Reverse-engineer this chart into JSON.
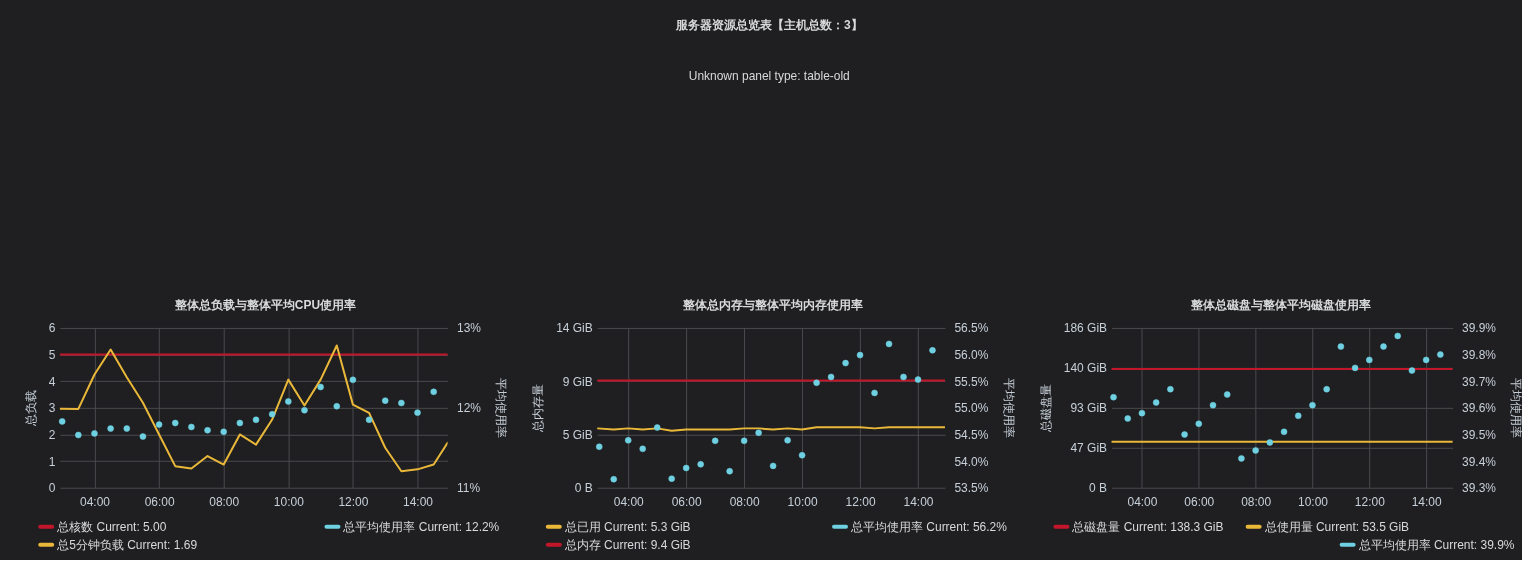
{
  "chart_data": [
    {
      "type": "other",
      "title": "服务器资源总览表【主机总数：3】",
      "annotations": [
        "Unknown panel type: table-old"
      ]
    },
    {
      "type": "line",
      "title": "整体总负载与整体平均CPU使用率",
      "ylabel": "总负载",
      "y2label": "平均使用率",
      "grid": true,
      "legend": "bottom",
      "xlim": [
        2.93,
        14.93
      ],
      "xticks": [
        {
          "value": 4,
          "label": "04:00"
        },
        {
          "value": 6,
          "label": "06:00"
        },
        {
          "value": 8,
          "label": "08:00"
        },
        {
          "value": 10,
          "label": "10:00"
        },
        {
          "value": 12,
          "label": "12:00"
        },
        {
          "value": 14,
          "label": "14:00"
        }
      ],
      "ylim": [
        0,
        6
      ],
      "yticks": [
        0,
        1,
        2,
        3,
        4,
        5,
        6
      ],
      "y2lim": [
        11,
        13
      ],
      "y2ticks": [
        {
          "value": 11,
          "label": "11%"
        },
        {
          "value": 12,
          "label": "12%"
        },
        {
          "value": 13,
          "label": "13%"
        }
      ],
      "series": [
        {
          "name": "总核数 Current: 5.00",
          "type": "line",
          "color": "#c4162a",
          "x": [
            2.93,
            14.93
          ],
          "values": [
            5.0,
            5.0
          ]
        },
        {
          "name": "总平均使用率 Current: 12.2%",
          "type": "scatter",
          "axis": "y2",
          "marker": "circle",
          "color": "#6ed0e0",
          "x": [
            3,
            3.5,
            4,
            4.5,
            5,
            5.5,
            6,
            6.5,
            7,
            7.5,
            8,
            8.5,
            9,
            9.5,
            10,
            10.5,
            11,
            11.5,
            12,
            12.5,
            13,
            13.5,
            14,
            14.5
          ],
          "values": [
            11.83,
            11.66,
            11.68,
            11.74,
            11.74,
            11.64,
            11.79,
            11.81,
            11.76,
            11.72,
            11.7,
            11.81,
            11.85,
            11.92,
            12.08,
            11.97,
            12.26,
            12.02,
            12.35,
            11.85,
            12.09,
            12.06,
            11.94,
            12.2
          ]
        },
        {
          "name": "总5分钟负载 Current: 1.69",
          "type": "line",
          "color": "#eab839",
          "x": [
            2.93,
            3.5,
            4,
            4.5,
            5,
            5.5,
            6,
            6.5,
            7,
            7.5,
            8,
            8.5,
            9,
            9.5,
            10,
            10.5,
            11,
            11.5,
            12,
            12.5,
            13,
            13.5,
            14,
            14.5,
            14.93
          ],
          "values": [
            2.97,
            2.96,
            4.25,
            5.19,
            4.15,
            3.19,
            2.0,
            0.81,
            0.72,
            1.19,
            0.87,
            2.0,
            1.62,
            2.56,
            4.06,
            3.09,
            4.06,
            5.34,
            3.12,
            2.81,
            1.5,
            0.62,
            0.69,
            0.87,
            1.69
          ]
        }
      ]
    },
    {
      "type": "line",
      "title": "整体总内存与整体平均内存使用率",
      "ylabel": "总内存量",
      "y2label": "平均使用率",
      "grid": true,
      "legend": "bottom",
      "xlim": [
        2.93,
        14.93
      ],
      "xticks": [
        {
          "value": 4,
          "label": "04:00"
        },
        {
          "value": 6,
          "label": "06:00"
        },
        {
          "value": 8,
          "label": "08:00"
        },
        {
          "value": 10,
          "label": "10:00"
        },
        {
          "value": 12,
          "label": "12:00"
        },
        {
          "value": 14,
          "label": "14:00"
        }
      ],
      "ylim": [
        0,
        14
      ],
      "yticks": [
        {
          "value": 0,
          "label": "0 B"
        },
        {
          "value": 4.667,
          "label": "5 GiB"
        },
        {
          "value": 9.333,
          "label": "9 GiB"
        },
        {
          "value": 14,
          "label": "14 GiB"
        }
      ],
      "y2lim": [
        53.5,
        56.5
      ],
      "y2ticks": [
        {
          "value": 53.5,
          "label": "53.5%"
        },
        {
          "value": 54,
          "label": "54.0%"
        },
        {
          "value": 54.5,
          "label": "54.5%"
        },
        {
          "value": 55,
          "label": "55.0%"
        },
        {
          "value": 55.5,
          "label": "55.5%"
        },
        {
          "value": 56,
          "label": "56.0%"
        },
        {
          "value": 56.5,
          "label": "56.5%"
        }
      ],
      "series": [
        {
          "name": "总已用 Current: 5.3 GiB",
          "type": "line",
          "color": "#eab839",
          "x": [
            2.93,
            3.5,
            4,
            4.5,
            5,
            5.5,
            6,
            6.5,
            7,
            7.5,
            8,
            8.5,
            9,
            9.5,
            10,
            10.5,
            11,
            11.5,
            12,
            12.5,
            13,
            13.5,
            14,
            14.5,
            14.93
          ],
          "values": [
            5.2,
            5.1,
            5.2,
            5.1,
            5.2,
            5.0,
            5.1,
            5.1,
            5.1,
            5.1,
            5.2,
            5.2,
            5.1,
            5.2,
            5.1,
            5.3,
            5.3,
            5.3,
            5.3,
            5.2,
            5.3,
            5.3,
            5.3,
            5.3,
            5.3
          ]
        },
        {
          "name": "总平均使用率 Current: 56.2%",
          "type": "scatter",
          "axis": "y2",
          "marker": "circle",
          "color": "#6ed0e0",
          "x": [
            3,
            3.5,
            4,
            4.5,
            5,
            5.5,
            6,
            6.5,
            7,
            7.5,
            8,
            8.5,
            9,
            9.5,
            10,
            10.5,
            11,
            11.5,
            12,
            12.5,
            13,
            13.5,
            14,
            14.5
          ],
          "values": [
            54.27,
            53.66,
            54.39,
            54.23,
            54.63,
            53.67,
            53.87,
            53.94,
            54.38,
            53.81,
            54.38,
            54.53,
            53.91,
            54.39,
            54.11,
            55.47,
            55.58,
            55.84,
            55.99,
            55.28,
            56.2,
            55.58,
            55.53,
            56.08
          ]
        },
        {
          "name": "总内存 Current: 9.4 GiB",
          "type": "line",
          "color": "#c4162a",
          "x": [
            2.93,
            14.93
          ],
          "values": [
            9.4,
            9.4
          ]
        }
      ]
    },
    {
      "type": "line",
      "title": "整体总磁盘与整体平均磁盘使用率",
      "ylabel": "总磁盘量",
      "y2label": "平均使用率",
      "grid": true,
      "legend": "bottom",
      "xlim": [
        2.93,
        14.93
      ],
      "xticks": [
        {
          "value": 4,
          "label": "04:00"
        },
        {
          "value": 6,
          "label": "06:00"
        },
        {
          "value": 8,
          "label": "08:00"
        },
        {
          "value": 10,
          "label": "10:00"
        },
        {
          "value": 12,
          "label": "12:00"
        },
        {
          "value": 14,
          "label": "14:00"
        }
      ],
      "ylim": [
        0,
        186
      ],
      "yticks": [
        {
          "value": 0,
          "label": "0 B"
        },
        {
          "value": 46.5,
          "label": "47 GiB"
        },
        {
          "value": 93,
          "label": "93 GiB"
        },
        {
          "value": 139.5,
          "label": "140 GiB"
        },
        {
          "value": 186,
          "label": "186 GiB"
        }
      ],
      "y2lim": [
        39.3,
        39.9
      ],
      "y2ticks": [
        {
          "value": 39.3,
          "label": "39.3%"
        },
        {
          "value": 39.4,
          "label": "39.4%"
        },
        {
          "value": 39.5,
          "label": "39.5%"
        },
        {
          "value": 39.6,
          "label": "39.6%"
        },
        {
          "value": 39.7,
          "label": "39.7%"
        },
        {
          "value": 39.8,
          "label": "39.8%"
        },
        {
          "value": 39.9,
          "label": "39.9%"
        }
      ],
      "series": [
        {
          "name": "总磁盘量 Current: 138.3 GiB",
          "type": "line",
          "color": "#c4162a",
          "x": [
            2.93,
            14.93
          ],
          "values": [
            138.3,
            138.3
          ]
        },
        {
          "name": "总使用量 Current: 53.5 GiB",
          "type": "line",
          "color": "#eab839",
          "x": [
            2.93,
            14.93
          ],
          "values": [
            53.5,
            53.5
          ]
        },
        {
          "name": "总平均使用率 Current: 39.9%",
          "type": "scatter",
          "axis": "y2",
          "marker": "circle",
          "color": "#6ed0e0",
          "x": [
            3,
            3.5,
            4,
            4.5,
            5,
            5.5,
            6,
            6.5,
            7,
            7.5,
            8,
            8.5,
            9,
            9.5,
            10,
            10.5,
            11,
            11.5,
            12,
            12.5,
            13,
            13.5,
            14,
            14.5
          ],
          "values": [
            39.64,
            39.56,
            39.58,
            39.62,
            39.67,
            39.5,
            39.54,
            39.61,
            39.65,
            39.41,
            39.44,
            39.47,
            39.51,
            39.57,
            39.61,
            39.67,
            39.83,
            39.75,
            39.78,
            39.83,
            39.87,
            39.74,
            39.78,
            39.8
          ]
        }
      ]
    }
  ]
}
